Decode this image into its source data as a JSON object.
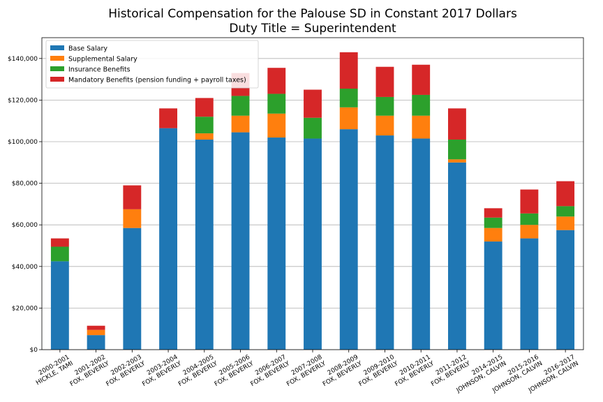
{
  "chart_data": {
    "type": "bar",
    "stacked": true,
    "title": "Historical Compensation for the Palouse SD in Constant 2017 Dollars",
    "subtitle": "Duty Title = Superintendent",
    "xlabel": "",
    "ylabel": "",
    "ylim": [
      0,
      150000
    ],
    "yticks": [
      0,
      20000,
      40000,
      60000,
      80000,
      100000,
      120000,
      140000
    ],
    "ytick_labels": [
      "$0",
      "$20,000",
      "$40,000",
      "$60,000",
      "$80,000",
      "$100,000",
      "$120,000",
      "$140,000"
    ],
    "grid": "horizontal",
    "legend_position": "top-left",
    "categories": [
      [
        "2000-2001",
        "HICKLE, TAMI"
      ],
      [
        "2001-2002",
        "FOX, BEVERLY"
      ],
      [
        "2002-2003",
        "FOX, BEVERLY"
      ],
      [
        "2003-2004",
        "FOX, BEVERLY"
      ],
      [
        "2004-2005",
        "FOX, BEVERLY"
      ],
      [
        "2005-2006",
        "FOX, BEVERLY"
      ],
      [
        "2006-2007",
        "FOX, BEVERLY"
      ],
      [
        "2007-2008",
        "FOX, BEVERLY"
      ],
      [
        "2008-2009",
        "FOX, BEVERLY"
      ],
      [
        "2009-2010",
        "FOX, BEVERLY"
      ],
      [
        "2010-2011",
        "FOX, BEVERLY"
      ],
      [
        "2011-2012",
        "FOX, BEVERLY"
      ],
      [
        "2014-2015",
        "JOHNSON, CALVIN"
      ],
      [
        "2015-2016",
        "JOHNSON, CALVIN"
      ],
      [
        "2016-2017",
        "JOHNSON, CALVIN"
      ]
    ],
    "series": [
      {
        "name": "Base Salary",
        "color": "#1f77b4",
        "values": [
          42500,
          7000,
          58500,
          106500,
          101000,
          104500,
          102000,
          101500,
          106000,
          103000,
          101500,
          90000,
          52000,
          53500,
          57500
        ]
      },
      {
        "name": "Supplemental Salary",
        "color": "#ff7f0e",
        "values": [
          0,
          2500,
          9000,
          0,
          3000,
          8000,
          11500,
          0,
          10500,
          9500,
          11000,
          1500,
          6500,
          6500,
          6500
        ]
      },
      {
        "name": "Insurance Benefits",
        "color": "#2ca02c",
        "values": [
          7000,
          0,
          0,
          0,
          8000,
          9500,
          9500,
          10000,
          9000,
          9000,
          10000,
          9500,
          5000,
          5500,
          5000
        ]
      },
      {
        "name": "Mandatory Benefits (pension funding + payroll taxes)",
        "color": "#d62728",
        "values": [
          4000,
          2000,
          11500,
          9500,
          9000,
          11000,
          12500,
          13500,
          17500,
          14500,
          14500,
          15000,
          4500,
          11500,
          12000
        ]
      }
    ]
  }
}
